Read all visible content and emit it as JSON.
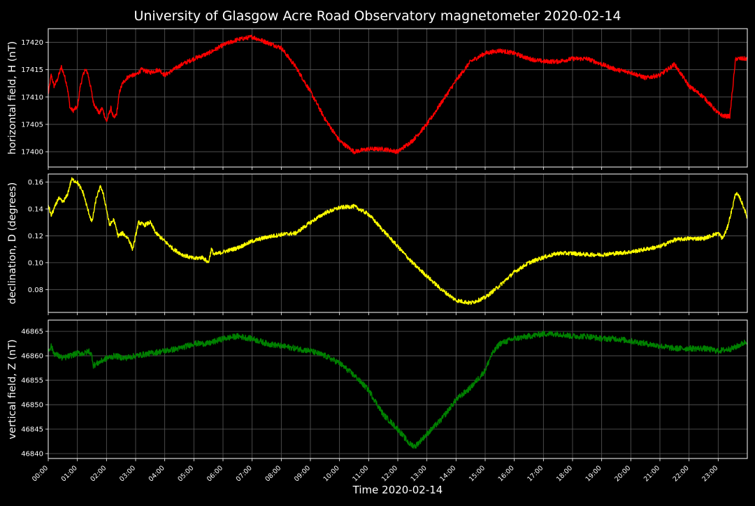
{
  "chart_data": {
    "type": "line",
    "title": "University of Glasgow Acre Road Observatory magnetometer 2020-02-14",
    "xlabel": "Time 2020-02-14",
    "xlim": [
      0,
      24
    ],
    "xticks": [
      "00:00",
      "01:00",
      "02:00",
      "03:00",
      "04:00",
      "05:00",
      "06:00",
      "07:00",
      "08:00",
      "09:00",
      "10:00",
      "11:00",
      "12:00",
      "13:00",
      "14:00",
      "15:00",
      "16:00",
      "17:00",
      "18:00",
      "19:00",
      "20:00",
      "21:00",
      "22:00",
      "23:00"
    ],
    "grid": true,
    "panels": [
      {
        "ylabel": "horizontal field, H (nT)",
        "color": "#ff0000",
        "ylim": [
          17397.2,
          17422.5
        ],
        "yticks": [
          17400,
          17405,
          17410,
          17415,
          17420
        ],
        "noise": 0.4,
        "x": [
          0,
          0.1,
          0.2,
          0.3,
          0.45,
          0.55,
          0.65,
          0.75,
          0.85,
          0.95,
          1.0,
          1.1,
          1.25,
          1.35,
          1.45,
          1.55,
          1.65,
          1.75,
          1.85,
          2.0,
          2.15,
          2.25,
          2.35,
          2.45,
          2.55,
          2.7,
          2.85,
          3.0,
          3.2,
          3.5,
          3.8,
          4.0,
          4.3,
          4.6,
          5.0,
          5.5,
          6.0,
          6.5,
          7.0,
          7.5,
          8.0,
          8.5,
          9.0,
          9.5,
          10.0,
          10.5,
          11.0,
          11.5,
          12.0,
          12.5,
          13.0,
          13.5,
          14.0,
          14.5,
          15.0,
          15.5,
          16.0,
          16.5,
          17.0,
          17.5,
          18.0,
          18.5,
          19.0,
          19.5,
          20.0,
          20.5,
          21.0,
          21.5,
          22.0,
          22.5,
          23.0,
          23.2,
          23.4,
          23.6,
          23.75,
          23.85,
          24.0
        ],
        "y": [
          17410.5,
          17414,
          17412,
          17413,
          17415.5,
          17414,
          17412,
          17408,
          17407.5,
          17408,
          17408,
          17412,
          17415,
          17414.5,
          17412,
          17409,
          17408,
          17407,
          17408,
          17405.5,
          17408,
          17406,
          17407,
          17411,
          17412.5,
          17413.5,
          17414,
          17414,
          17415,
          17414.5,
          17415,
          17414,
          17415,
          17416,
          17417,
          17418,
          17419.5,
          17420.5,
          17421,
          17420,
          17419,
          17415.5,
          17411,
          17406,
          17402,
          17400,
          17400.5,
          17400.5,
          17400,
          17402,
          17405,
          17409,
          17413,
          17416.5,
          17418,
          17418.5,
          17418,
          17417,
          17416.5,
          17416.5,
          17417,
          17417,
          17416,
          17415,
          17414.5,
          17413.5,
          17414,
          17416,
          17412,
          17410,
          17407,
          17406.5,
          17406.5,
          17417,
          17417,
          17417,
          17417
        ]
      },
      {
        "ylabel": "declination, D (degrees)",
        "color": "#ffff00",
        "ylim": [
          0.063,
          0.166
        ],
        "yticks": [
          0.08,
          0.1,
          0.12,
          0.14,
          0.16
        ],
        "noise": 0.0015,
        "x": [
          0,
          0.1,
          0.2,
          0.35,
          0.5,
          0.65,
          0.8,
          1.0,
          1.2,
          1.35,
          1.5,
          1.65,
          1.8,
          1.9,
          2.0,
          2.1,
          2.25,
          2.4,
          2.55,
          2.75,
          2.9,
          3.1,
          3.3,
          3.5,
          3.7,
          4.0,
          4.3,
          4.6,
          5.0,
          5.3,
          5.5,
          5.6,
          5.7,
          6.0,
          6.5,
          7.0,
          7.5,
          8.0,
          8.5,
          9.0,
          9.5,
          10.0,
          10.5,
          11.0,
          11.5,
          12.0,
          12.5,
          13.0,
          13.5,
          14.0,
          14.5,
          15.0,
          15.5,
          16.0,
          16.5,
          17.0,
          17.5,
          18.0,
          18.5,
          19.0,
          19.5,
          20.0,
          20.5,
          21.0,
          21.5,
          22.0,
          22.5,
          23.0,
          23.15,
          23.3,
          23.5,
          23.6,
          23.75,
          23.9,
          24.0
        ],
        "y": [
          0.143,
          0.135,
          0.14,
          0.148,
          0.145,
          0.15,
          0.162,
          0.16,
          0.152,
          0.14,
          0.13,
          0.148,
          0.157,
          0.15,
          0.14,
          0.128,
          0.132,
          0.12,
          0.122,
          0.118,
          0.11,
          0.13,
          0.128,
          0.13,
          0.122,
          0.116,
          0.11,
          0.106,
          0.103,
          0.104,
          0.1,
          0.11,
          0.106,
          0.108,
          0.111,
          0.116,
          0.119,
          0.121,
          0.122,
          0.13,
          0.137,
          0.141,
          0.142,
          0.136,
          0.124,
          0.112,
          0.1,
          0.09,
          0.08,
          0.072,
          0.07,
          0.074,
          0.083,
          0.093,
          0.1,
          0.104,
          0.107,
          0.107,
          0.106,
          0.106,
          0.107,
          0.108,
          0.11,
          0.112,
          0.117,
          0.118,
          0.118,
          0.122,
          0.118,
          0.125,
          0.142,
          0.152,
          0.148,
          0.14,
          0.133
        ]
      },
      {
        "ylabel": "vertical field, Z (nT)",
        "color": "#008000",
        "ylim": [
          46839.0,
          46867.3
        ],
        "yticks": [
          46840,
          46845,
          46850,
          46855,
          46860,
          46865
        ],
        "noise": 0.6,
        "x": [
          0,
          0.1,
          0.2,
          0.35,
          0.5,
          0.75,
          1.0,
          1.25,
          1.4,
          1.5,
          1.55,
          1.7,
          2.0,
          2.3,
          2.6,
          3.0,
          3.5,
          4.0,
          4.5,
          5.0,
          5.5,
          6.0,
          6.5,
          7.0,
          7.5,
          8.0,
          8.5,
          9.0,
          9.5,
          10.0,
          10.5,
          11.0,
          11.5,
          12.0,
          12.4,
          12.6,
          13.0,
          13.5,
          14.0,
          14.5,
          15.0,
          15.2,
          15.5,
          16.0,
          16.5,
          17.0,
          17.5,
          18.0,
          18.5,
          19.0,
          19.5,
          20.0,
          20.5,
          21.0,
          21.5,
          22.0,
          22.5,
          23.0,
          23.5,
          24.0
        ],
        "y": [
          46861,
          46862,
          46860.5,
          46860,
          46859.5,
          46860,
          46860.5,
          46860.5,
          46861,
          46860,
          46858,
          46858.5,
          46859.5,
          46860,
          46859.5,
          46860,
          46860.5,
          46861,
          46861.5,
          46862.5,
          46862.5,
          46863.5,
          46864,
          46863.5,
          46862.5,
          46862,
          46861.5,
          46861,
          46860,
          46858.5,
          46856,
          46853,
          46848,
          46845,
          46842,
          46841.5,
          46844,
          46847,
          46851,
          46853.5,
          46857,
          46860,
          46862.5,
          46863.5,
          46864,
          46864.5,
          46864.5,
          46864,
          46864,
          46863.5,
          46863.5,
          46863,
          46862.5,
          46862,
          46861.5,
          46861.5,
          46861.5,
          46861,
          46861.5,
          46863
        ]
      }
    ]
  }
}
